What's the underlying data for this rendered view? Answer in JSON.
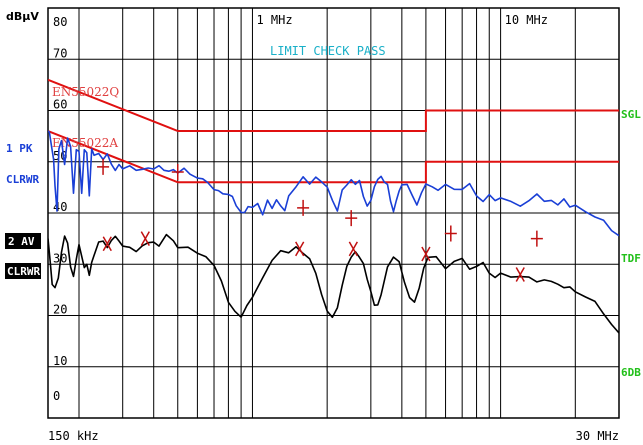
{
  "header": {
    "unit": "dBµV",
    "status": "LIMIT CHECK  PASS"
  },
  "left_labels": {
    "trace1_line1": "1 PK",
    "trace1_line2": "CLRWR",
    "trace2_line1": "2 AV",
    "trace2_line2": "CLRWR"
  },
  "right_labels": {
    "sgl": "SGL",
    "tdf": "TDF",
    "sixdb": "6DB"
  },
  "colors": {
    "trace1": "#1a3fd6",
    "trace2": "#000000",
    "limit": "#e01010",
    "marker": "#c01010",
    "status": "#1ab0c8",
    "annotation": "#22c01a"
  },
  "chart_data": {
    "type": "line",
    "x_scale": "log",
    "x_unit": "MHz",
    "xlim": [
      0.15,
      30
    ],
    "ylim": [
      0,
      80
    ],
    "grid": true,
    "x_axis_labels": [
      {
        "x": 0.15,
        "text": "150 kHz",
        "pos": "bottom"
      },
      {
        "x": 30,
        "text": "30 MHz",
        "pos": "bottom"
      },
      {
        "x": 1,
        "text": "1 MHz",
        "pos": "top"
      },
      {
        "x": 10,
        "text": "10 MHz",
        "pos": "top"
      }
    ],
    "y_ticks": [
      {
        "y": 80,
        "text": "80"
      },
      {
        "y": 70,
        "text": "70"
      },
      {
        "y": 60,
        "text": "60"
      },
      {
        "y": 50,
        "text": "50"
      },
      {
        "y": 40,
        "text": "40"
      },
      {
        "y": 30,
        "text": "30"
      },
      {
        "y": 20,
        "text": "20"
      },
      {
        "y": 10,
        "text": "10"
      },
      {
        "y": 0,
        "text": "0"
      }
    ],
    "limit_lines": [
      {
        "name": "EN55022Q",
        "points": [
          [
            0.15,
            66
          ],
          [
            0.5,
            56
          ],
          [
            5,
            56
          ],
          [
            5,
            60
          ],
          [
            30,
            60
          ]
        ]
      },
      {
        "name": "EN55022A",
        "points": [
          [
            0.15,
            56
          ],
          [
            0.5,
            46
          ],
          [
            5,
            46
          ],
          [
            5,
            50
          ],
          [
            30,
            50
          ]
        ]
      }
    ],
    "series": [
      {
        "trace": "1 PK",
        "points": [
          [
            0.15,
            56
          ],
          [
            0.152,
            55
          ],
          [
            0.155,
            53
          ],
          [
            0.158,
            50
          ],
          [
            0.16,
            45
          ],
          [
            0.163,
            40
          ],
          [
            0.166,
            52
          ],
          [
            0.17,
            54
          ],
          [
            0.175,
            50
          ],
          [
            0.18,
            55
          ],
          [
            0.185,
            53
          ],
          [
            0.19,
            44
          ],
          [
            0.195,
            53
          ],
          [
            0.2,
            52
          ],
          [
            0.205,
            44
          ],
          [
            0.21,
            52
          ],
          [
            0.215,
            51
          ],
          [
            0.22,
            43
          ],
          [
            0.225,
            52
          ],
          [
            0.23,
            51
          ],
          [
            0.24,
            51
          ],
          [
            0.25,
            50
          ],
          [
            0.26,
            51
          ],
          [
            0.27,
            50
          ],
          [
            0.28,
            49
          ],
          [
            0.29,
            50
          ],
          [
            0.3,
            49
          ],
          [
            0.32,
            50
          ],
          [
            0.34,
            49
          ],
          [
            0.36,
            49
          ],
          [
            0.38,
            48
          ],
          [
            0.4,
            48
          ],
          [
            0.42,
            49
          ],
          [
            0.44,
            48
          ],
          [
            0.46,
            48
          ],
          [
            0.48,
            48
          ],
          [
            0.5,
            47
          ],
          [
            0.53,
            48
          ],
          [
            0.56,
            48
          ],
          [
            0.6,
            47
          ],
          [
            0.63,
            47
          ],
          [
            0.66,
            46
          ],
          [
            0.7,
            45
          ],
          [
            0.73,
            45
          ],
          [
            0.76,
            44
          ],
          [
            0.8,
            43
          ],
          [
            0.83,
            43
          ],
          [
            0.86,
            41
          ],
          [
            0.9,
            40
          ],
          [
            0.93,
            40
          ],
          [
            0.96,
            41
          ],
          [
            1.0,
            41
          ],
          [
            1.05,
            42
          ],
          [
            1.1,
            40
          ],
          [
            1.15,
            43
          ],
          [
            1.2,
            41
          ],
          [
            1.25,
            43
          ],
          [
            1.3,
            42
          ],
          [
            1.35,
            41
          ],
          [
            1.4,
            44
          ],
          [
            1.5,
            45
          ],
          [
            1.6,
            47
          ],
          [
            1.7,
            45
          ],
          [
            1.8,
            47
          ],
          [
            1.9,
            46
          ],
          [
            2.0,
            45
          ],
          [
            2.1,
            42
          ],
          [
            2.2,
            41
          ],
          [
            2.3,
            45
          ],
          [
            2.4,
            46
          ],
          [
            2.5,
            47
          ],
          [
            2.6,
            46
          ],
          [
            2.7,
            47
          ],
          [
            2.8,
            44
          ],
          [
            2.9,
            42
          ],
          [
            3.0,
            42
          ],
          [
            3.1,
            45
          ],
          [
            3.2,
            46
          ],
          [
            3.3,
            47
          ],
          [
            3.4,
            46
          ],
          [
            3.5,
            45
          ],
          [
            3.6,
            42
          ],
          [
            3.7,
            41
          ],
          [
            3.8,
            43
          ],
          [
            3.9,
            45
          ],
          [
            4.0,
            46
          ],
          [
            4.2,
            46
          ],
          [
            4.4,
            44
          ],
          [
            4.6,
            42
          ],
          [
            4.8,
            44
          ],
          [
            5.0,
            45
          ],
          [
            5.3,
            45
          ],
          [
            5.6,
            44
          ],
          [
            6.0,
            45
          ],
          [
            6.5,
            44
          ],
          [
            7.0,
            44
          ],
          [
            7.5,
            45
          ],
          [
            8.0,
            44
          ],
          [
            8.5,
            43
          ],
          [
            9.0,
            44
          ],
          [
            9.5,
            43
          ],
          [
            10,
            43
          ],
          [
            11,
            43
          ],
          [
            12,
            42
          ],
          [
            13,
            42
          ],
          [
            14,
            43
          ],
          [
            15,
            42
          ],
          [
            16,
            42
          ],
          [
            17,
            41
          ],
          [
            18,
            42
          ],
          [
            19,
            41
          ],
          [
            20,
            41
          ],
          [
            22,
            41
          ],
          [
            24,
            40
          ],
          [
            26,
            39
          ],
          [
            28,
            37
          ],
          [
            30,
            36
          ]
        ]
      },
      {
        "trace": "2 AV",
        "points": [
          [
            0.15,
            35
          ],
          [
            0.153,
            30
          ],
          [
            0.156,
            26
          ],
          [
            0.16,
            25
          ],
          [
            0.165,
            27
          ],
          [
            0.17,
            32
          ],
          [
            0.175,
            35
          ],
          [
            0.18,
            34
          ],
          [
            0.185,
            30
          ],
          [
            0.19,
            28
          ],
          [
            0.195,
            31
          ],
          [
            0.2,
            34
          ],
          [
            0.21,
            30
          ],
          [
            0.215,
            30
          ],
          [
            0.22,
            28
          ],
          [
            0.225,
            30
          ],
          [
            0.23,
            31
          ],
          [
            0.24,
            34
          ],
          [
            0.25,
            34
          ],
          [
            0.26,
            33
          ],
          [
            0.27,
            34
          ],
          [
            0.28,
            35
          ],
          [
            0.29,
            34
          ],
          [
            0.3,
            34
          ],
          [
            0.32,
            34
          ],
          [
            0.34,
            33
          ],
          [
            0.36,
            34
          ],
          [
            0.38,
            35
          ],
          [
            0.4,
            35
          ],
          [
            0.42,
            34
          ],
          [
            0.45,
            35
          ],
          [
            0.48,
            34
          ],
          [
            0.5,
            33
          ],
          [
            0.55,
            33
          ],
          [
            0.6,
            32
          ],
          [
            0.65,
            31
          ],
          [
            0.7,
            29
          ],
          [
            0.75,
            26
          ],
          [
            0.8,
            23
          ],
          [
            0.85,
            21
          ],
          [
            0.9,
            20
          ],
          [
            0.95,
            22
          ],
          [
            1.0,
            24
          ],
          [
            1.1,
            28
          ],
          [
            1.2,
            31
          ],
          [
            1.3,
            32
          ],
          [
            1.4,
            32
          ],
          [
            1.5,
            33
          ],
          [
            1.6,
            32
          ],
          [
            1.7,
            31
          ],
          [
            1.8,
            28
          ],
          [
            1.9,
            24
          ],
          [
            2.0,
            21
          ],
          [
            2.1,
            20
          ],
          [
            2.2,
            22
          ],
          [
            2.3,
            26
          ],
          [
            2.4,
            30
          ],
          [
            2.5,
            32
          ],
          [
            2.6,
            33
          ],
          [
            2.7,
            32
          ],
          [
            2.8,
            30
          ],
          [
            2.9,
            27
          ],
          [
            3.0,
            24
          ],
          [
            3.1,
            22
          ],
          [
            3.2,
            22
          ],
          [
            3.3,
            24
          ],
          [
            3.5,
            29
          ],
          [
            3.7,
            32
          ],
          [
            3.9,
            31
          ],
          [
            4.1,
            27
          ],
          [
            4.3,
            24
          ],
          [
            4.5,
            23
          ],
          [
            4.7,
            26
          ],
          [
            4.9,
            30
          ],
          [
            5.1,
            32
          ],
          [
            5.5,
            31
          ],
          [
            6.0,
            29
          ],
          [
            6.5,
            30
          ],
          [
            7.0,
            31
          ],
          [
            7.5,
            29
          ],
          [
            8.0,
            29
          ],
          [
            8.5,
            30
          ],
          [
            9.0,
            29
          ],
          [
            9.5,
            28
          ],
          [
            10,
            29
          ],
          [
            11,
            28
          ],
          [
            12,
            28
          ],
          [
            13,
            28
          ],
          [
            14,
            27
          ],
          [
            15,
            27
          ],
          [
            16,
            26
          ],
          [
            17,
            26
          ],
          [
            18,
            25
          ],
          [
            19,
            25
          ],
          [
            20,
            24
          ],
          [
            22,
            23
          ],
          [
            24,
            22
          ],
          [
            26,
            21
          ],
          [
            28,
            19
          ],
          [
            30,
            17
          ]
        ]
      }
    ],
    "markers": [
      {
        "trace": "1 PK",
        "symbol": "+",
        "x": 0.25,
        "y": 49
      },
      {
        "trace": "1 PK",
        "symbol": "+",
        "x": 0.5,
        "y": 48
      },
      {
        "trace": "1 PK",
        "symbol": "+",
        "x": 1.6,
        "y": 41
      },
      {
        "trace": "1 PK",
        "symbol": "+",
        "x": 2.5,
        "y": 39
      },
      {
        "trace": "1 PK",
        "symbol": "+",
        "x": 6.3,
        "y": 36
      },
      {
        "trace": "1 PK",
        "symbol": "+",
        "x": 14,
        "y": 35
      },
      {
        "trace": "2 AV",
        "symbol": "x",
        "x": 0.26,
        "y": 34
      },
      {
        "trace": "2 AV",
        "symbol": "x",
        "x": 0.37,
        "y": 35
      },
      {
        "trace": "2 AV",
        "symbol": "x",
        "x": 1.55,
        "y": 33
      },
      {
        "trace": "2 AV",
        "symbol": "x",
        "x": 2.55,
        "y": 33
      },
      {
        "trace": "2 AV",
        "symbol": "x",
        "x": 5.0,
        "y": 32
      },
      {
        "trace": "2 AV",
        "symbol": "x",
        "x": 12,
        "y": 28
      }
    ]
  }
}
